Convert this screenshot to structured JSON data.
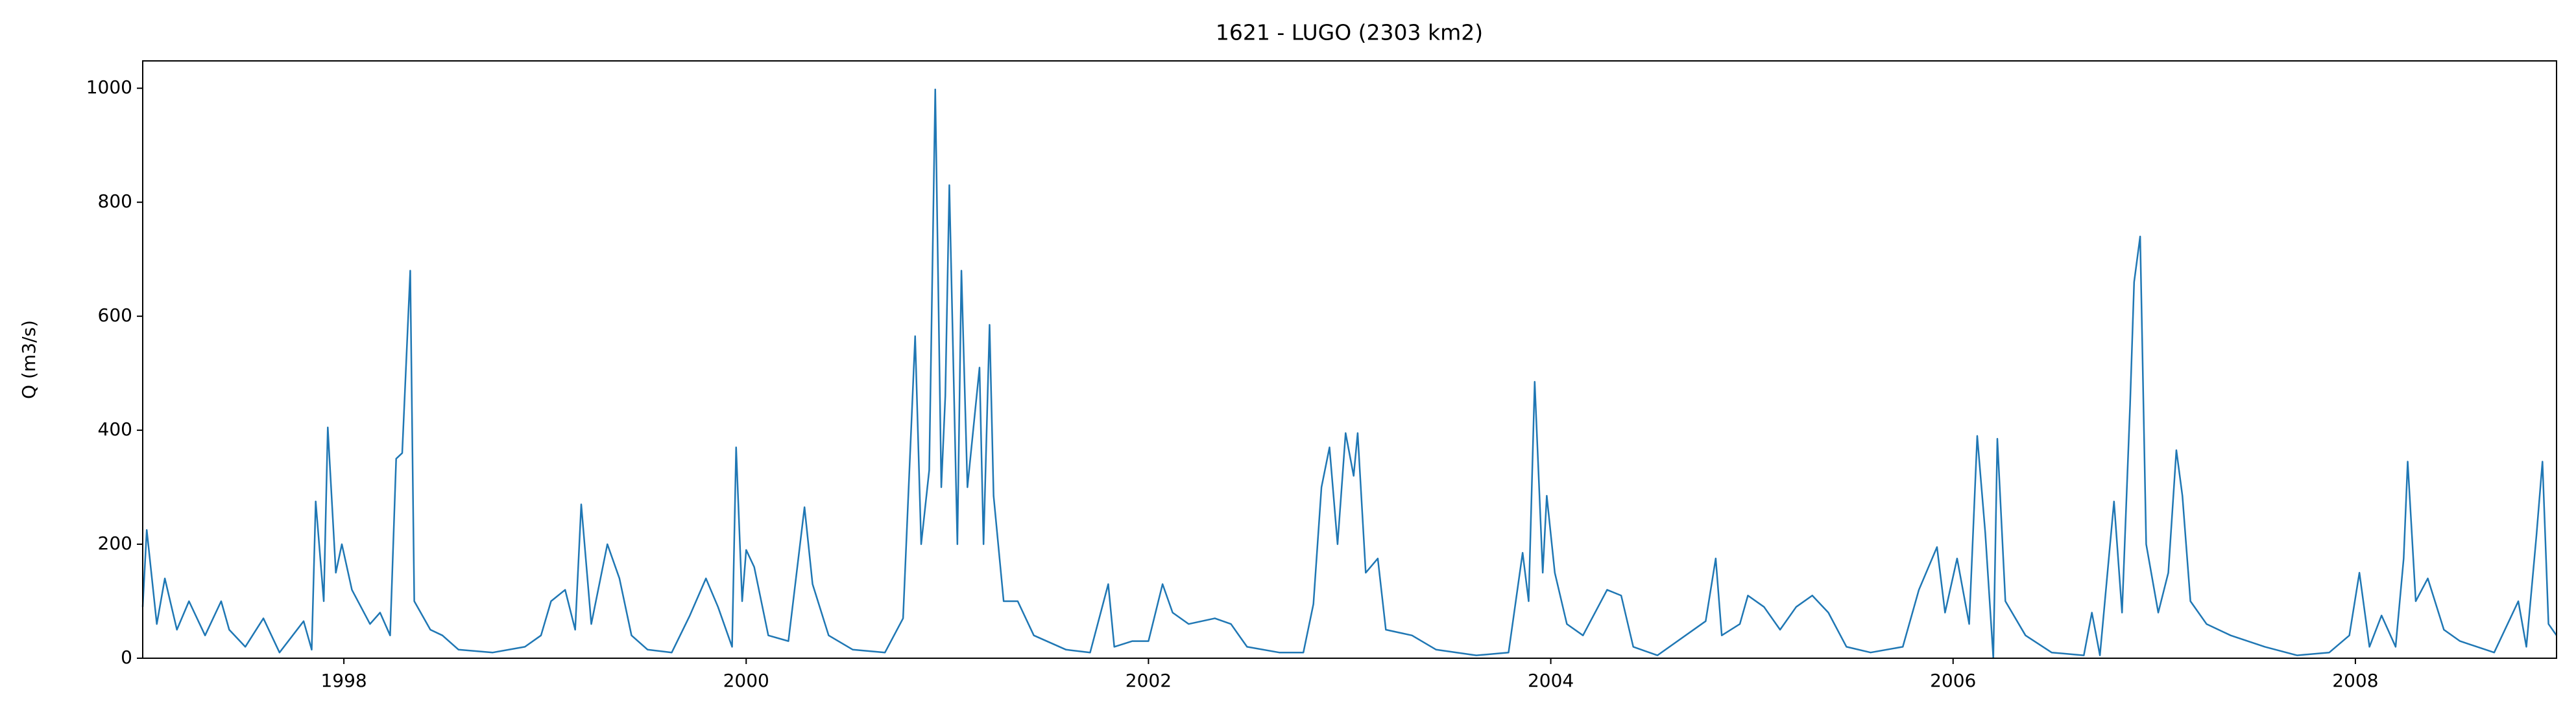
{
  "chart_data": {
    "type": "line",
    "title": "1621 - LUGO (2303 km2)",
    "y_label": "Q (m3/s)",
    "color": "#1f77b4",
    "x": [
      1997.0,
      1997.02,
      1997.07,
      1997.11,
      1997.17,
      1997.23,
      1997.31,
      1997.39,
      1997.43,
      1997.51,
      1997.6,
      1997.68,
      1997.8,
      1997.84,
      1997.86,
      1997.9,
      1997.92,
      1997.96,
      1997.99,
      1998.04,
      1998.13,
      1998.18,
      1998.23,
      1998.26,
      1998.29,
      1998.33,
      1998.35,
      1998.43,
      1998.49,
      1998.57,
      1998.74,
      1998.9,
      1998.98,
      1999.03,
      1999.1,
      1999.15,
      1999.18,
      1999.23,
      1999.31,
      1999.37,
      1999.43,
      1999.51,
      1999.63,
      1999.72,
      1999.8,
      1999.86,
      1999.93,
      1999.95,
      1999.98,
      2000.0,
      2000.04,
      2000.11,
      2000.21,
      2000.29,
      2000.33,
      2000.41,
      2000.53,
      2000.69,
      2000.78,
      2000.84,
      2000.87,
      2000.91,
      2000.94,
      2000.97,
      2000.99,
      2001.01,
      2001.05,
      2001.07,
      2001.1,
      2001.16,
      2001.18,
      2001.21,
      2001.23,
      2001.28,
      2001.35,
      2001.43,
      2001.59,
      2001.71,
      2001.8,
      2001.83,
      2001.92,
      2002.0,
      2002.07,
      2002.12,
      2002.2,
      2002.33,
      2002.41,
      2002.49,
      2002.65,
      2002.77,
      2002.82,
      2002.86,
      2002.9,
      2002.94,
      2002.98,
      2003.02,
      2003.04,
      2003.08,
      2003.14,
      2003.18,
      2003.31,
      2003.43,
      2003.63,
      2003.79,
      2003.86,
      2003.89,
      2003.92,
      2003.96,
      2003.98,
      2004.02,
      2004.08,
      2004.16,
      2004.28,
      2004.35,
      2004.41,
      2004.53,
      2004.77,
      2004.82,
      2004.85,
      2004.94,
      2004.98,
      2005.06,
      2005.14,
      2005.22,
      2005.3,
      2005.38,
      2005.47,
      2005.59,
      2005.75,
      2005.83,
      2005.92,
      2005.96,
      2006.02,
      2006.08,
      2006.12,
      2006.16,
      2006.2,
      2006.22,
      2006.26,
      2006.36,
      2006.49,
      2006.65,
      2006.69,
      2006.73,
      2006.8,
      2006.84,
      2006.88,
      2006.9,
      2006.93,
      2006.96,
      2007.02,
      2007.07,
      2007.11,
      2007.14,
      2007.18,
      2007.26,
      2007.38,
      2007.55,
      2007.71,
      2007.87,
      2007.97,
      2008.02,
      2008.07,
      2008.13,
      2008.2,
      2008.24,
      2008.26,
      2008.3,
      2008.36,
      2008.44,
      2008.52,
      2008.69,
      2008.81,
      2008.85,
      2008.9,
      2008.93,
      2008.96,
      2009.0
    ],
    "values": [
      90,
      225,
      60,
      140,
      50,
      100,
      40,
      100,
      50,
      20,
      70,
      10,
      65,
      15,
      275,
      100,
      405,
      150,
      200,
      120,
      60,
      80,
      40,
      350,
      360,
      680,
      100,
      50,
      40,
      15,
      10,
      20,
      40,
      100,
      120,
      50,
      270,
      60,
      200,
      140,
      40,
      15,
      10,
      75,
      140,
      90,
      20,
      370,
      100,
      190,
      160,
      40,
      30,
      265,
      130,
      40,
      15,
      10,
      70,
      565,
      200,
      330,
      998,
      300,
      460,
      830,
      200,
      680,
      300,
      510,
      200,
      585,
      285,
      100,
      100,
      40,
      15,
      10,
      130,
      20,
      30,
      30,
      130,
      80,
      60,
      70,
      60,
      20,
      10,
      10,
      95,
      300,
      370,
      200,
      395,
      320,
      395,
      150,
      175,
      50,
      40,
      15,
      5,
      10,
      185,
      100,
      485,
      150,
      285,
      150,
      60,
      40,
      120,
      110,
      20,
      5,
      65,
      175,
      40,
      60,
      110,
      90,
      50,
      90,
      110,
      80,
      20,
      10,
      20,
      120,
      195,
      80,
      175,
      60,
      390,
      220,
      0,
      385,
      100,
      40,
      10,
      5,
      80,
      5,
      275,
      80,
      445,
      660,
      740,
      200,
      80,
      150,
      365,
      285,
      100,
      60,
      40,
      20,
      5,
      10,
      40,
      150,
      20,
      75,
      20,
      175,
      345,
      100,
      140,
      50,
      30,
      10,
      100,
      20,
      215,
      345,
      60,
      40
    ],
    "xlim": [
      1997.0,
      2009.0
    ],
    "ylim": [
      0,
      1048
    ],
    "xticks": [
      1998,
      2000,
      2002,
      2004,
      2006,
      2008
    ],
    "yticks": [
      0,
      200,
      400,
      600,
      800,
      1000
    ]
  }
}
